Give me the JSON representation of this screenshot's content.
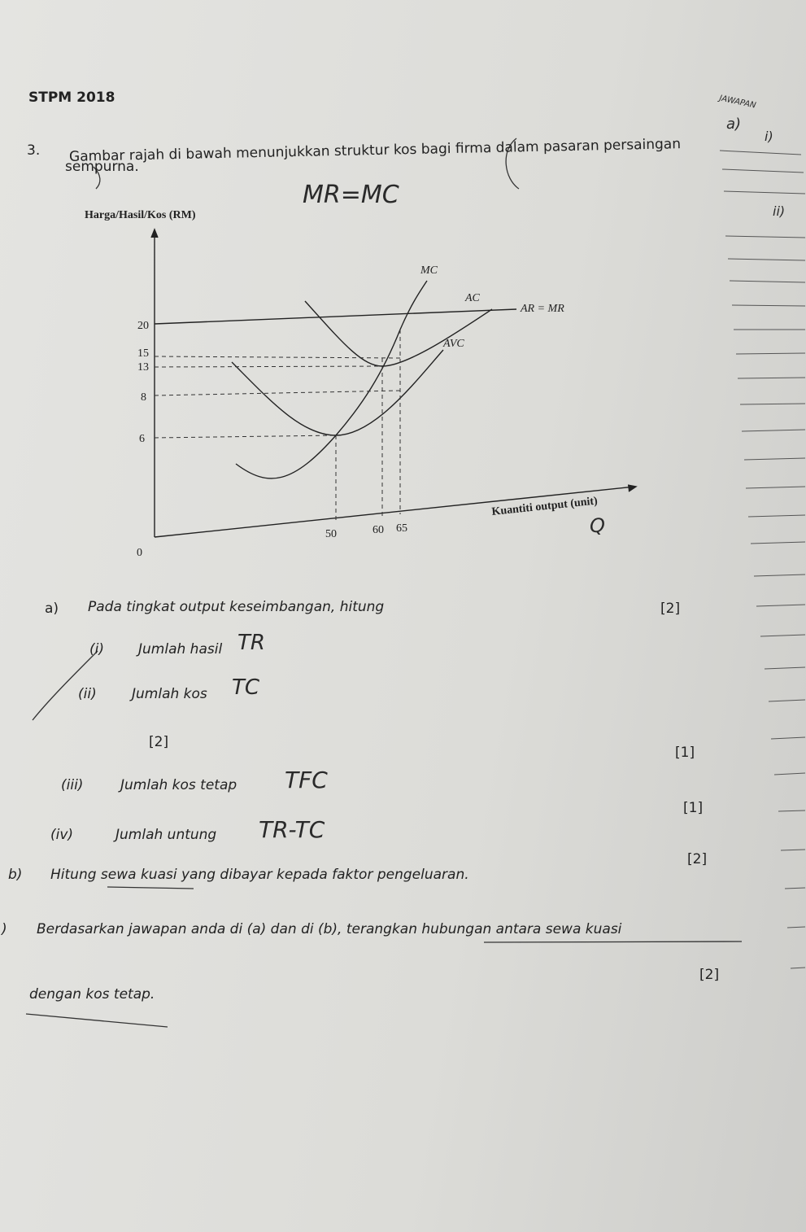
{
  "header": {
    "title": "STPM 2018"
  },
  "question": {
    "number": "3.",
    "line1": "Gambar rajah di bawah menunjukkan struktur kos bagi firma dalam pasaran persaingan",
    "line2": "sempurna."
  },
  "figure": {
    "y_axis_label": "Harga/Hasil/Kos (RM)",
    "x_axis_label": "Kuantiti output (unit)",
    "origin": 0,
    "yticks": [
      20,
      15,
      13,
      8,
      6
    ],
    "xticks": [
      50,
      60,
      65
    ],
    "curve_labels": {
      "mc": "MC",
      "ac": "AC",
      "ar": "AR = MR",
      "avc": "AVC"
    }
  },
  "part_a": {
    "label": "a)",
    "text": "Pada tingkat output keseimbangan, hitung",
    "mark": "[2]",
    "items": [
      {
        "num": "(i)",
        "text": "Jumlah hasil"
      },
      {
        "num": "(ii)",
        "text": "Jumlah kos"
      },
      {
        "num": "(iii)",
        "text": "Jumlah kos tetap",
        "mark": "[1]"
      },
      {
        "num": "(iv)",
        "text": "Jumlah untung",
        "mark": "[1]"
      }
    ],
    "extra_mark": "[2]"
  },
  "part_b": {
    "label": "b)",
    "text": "Hitung sewa kuasi yang dibayar kepada faktor pengeluaran.",
    "mark": "[2]"
  },
  "part_c": {
    "label": ")",
    "line1": "Berdasarkan jawapan anda di (a) dan di (b), terangkan hubungan antara sewa kuasi",
    "line2": "dengan kos tetap.",
    "mark": "[2]"
  },
  "handwriting": {
    "rule": "MR=MC",
    "tr": "TR",
    "tc": "TC",
    "tfc": "TFC",
    "profit": "TR-TC",
    "q": "Q",
    "answer_head": "JAWAPAN",
    "a": "a)",
    "i": "i)",
    "ii": "ii)"
  }
}
